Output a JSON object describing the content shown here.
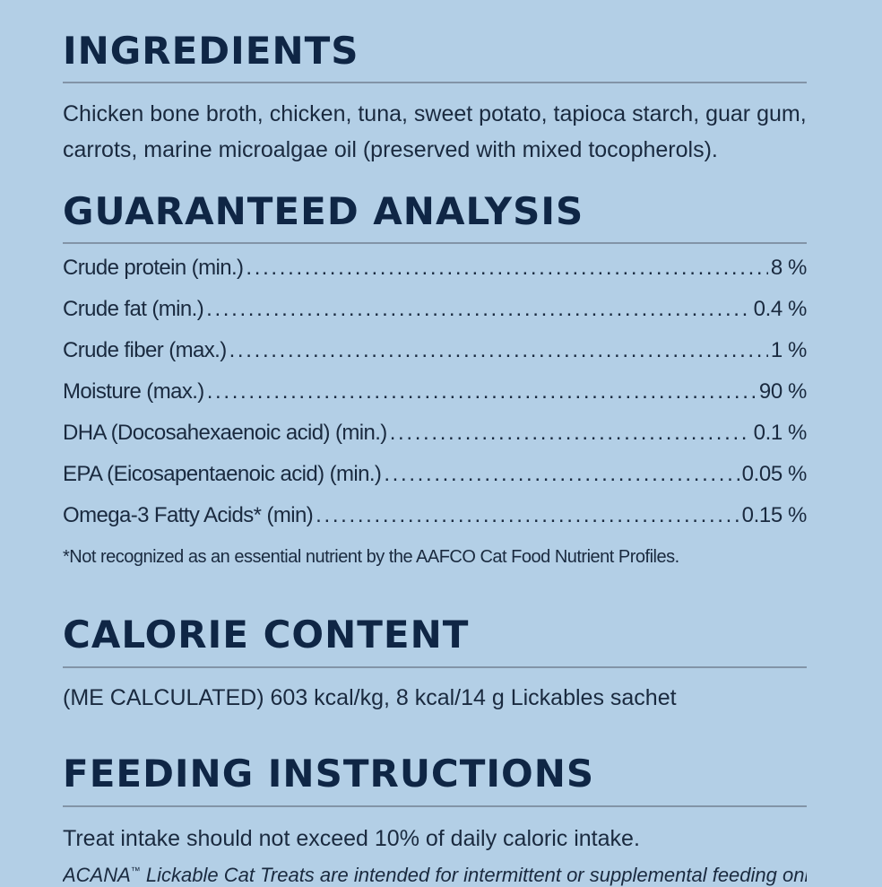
{
  "ingredients": {
    "title": "INGREDIENTS",
    "line1": "Chicken bone broth, chicken, tuna, sweet potato, tapioca starch, guar gum,",
    "line2": "carrots, marine microalgae oil (preserved with mixed tocopherols)."
  },
  "guaranteed_analysis": {
    "title": "GUARANTEED ANALYSIS",
    "rows": [
      {
        "name": "Crude protein (min.)",
        "value": "8 %"
      },
      {
        "name": "Crude fat (min.)",
        "value": "0.4 %"
      },
      {
        "name": "Crude fiber (max.)",
        "value": "1 %"
      },
      {
        "name": "Moisture (max.)",
        "value": "90 %"
      },
      {
        "name": "DHA (Docosahexaenoic acid) (min.)",
        "value": "0.1 %"
      },
      {
        "name": "EPA (Eicosapentaenoic acid) (min.)",
        "value": "0.05 %"
      },
      {
        "name": "Omega-3 Fatty Acids* (min)",
        "value": "0.15 %"
      }
    ],
    "footnote": "*Not recognized as an essential nutrient by the AAFCO Cat Food Nutrient Profiles."
  },
  "calorie_content": {
    "title": "CALORIE CONTENT",
    "text": "(ME CALCULATED) 603 kcal/kg, 8 kcal/14 g Lickables sachet"
  },
  "feeding_instructions": {
    "title": "FEEDING INSTRUCTIONS",
    "text": "Treat intake should not exceed 10% of daily caloric intake.",
    "brand": "ACANA",
    "trademark": "™",
    "note": " Lickable Cat Treats are intended for intermittent or supplemental feeding only."
  },
  "colors": {
    "background": "#b3cfe6",
    "heading": "#0f2645",
    "rule": "#8294a7"
  }
}
